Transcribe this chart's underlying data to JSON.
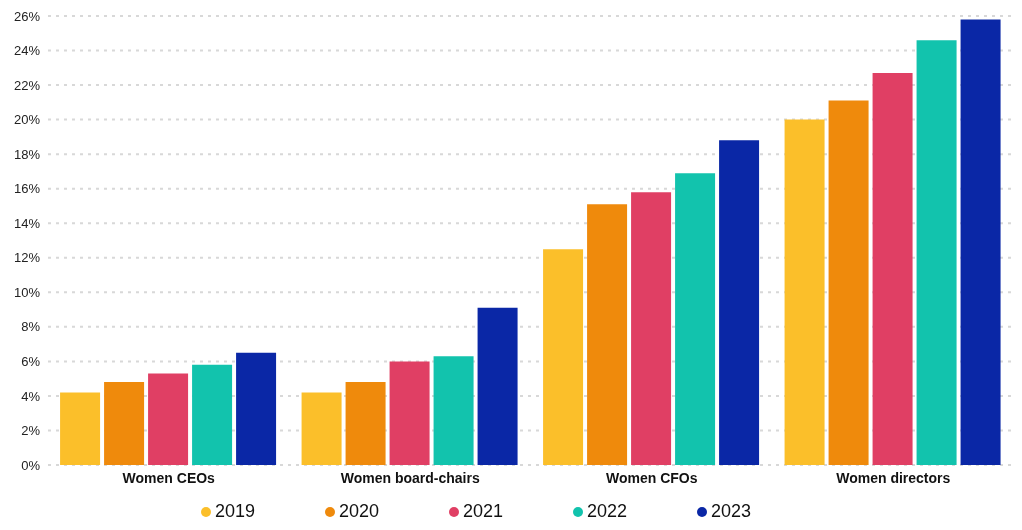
{
  "chart_data": {
    "type": "bar",
    "categories": [
      "Women CEOs",
      "Women board-chairs",
      "Women CFOs",
      "Women directors"
    ],
    "series": [
      {
        "name": "2019",
        "color": "#fbbf2a",
        "values": [
          4.2,
          4.2,
          12.5,
          20.0
        ]
      },
      {
        "name": "2020",
        "color": "#ef8a0c",
        "values": [
          4.8,
          4.8,
          15.1,
          21.1
        ]
      },
      {
        "name": "2021",
        "color": "#e03f64",
        "values": [
          5.3,
          6.0,
          15.8,
          22.7
        ]
      },
      {
        "name": "2022",
        "color": "#12c3ad",
        "values": [
          5.8,
          6.3,
          16.9,
          24.6
        ]
      },
      {
        "name": "2023",
        "color": "#0a27a6",
        "values": [
          6.5,
          9.1,
          18.8,
          25.8
        ]
      }
    ],
    "ylim": [
      0,
      26
    ],
    "yticks": [
      {
        "value": 0,
        "label": "0%"
      },
      {
        "value": 2,
        "label": "2%"
      },
      {
        "value": 4,
        "label": "4%"
      },
      {
        "value": 6,
        "label": "6%"
      },
      {
        "value": 8,
        "label": "8%"
      },
      {
        "value": 10,
        "label": "10%"
      },
      {
        "value": 12,
        "label": "12%"
      },
      {
        "value": 14,
        "label": "14%"
      },
      {
        "value": 16,
        "label": "16%"
      },
      {
        "value": 18,
        "label": "18%"
      },
      {
        "value": 20,
        "label": "20%"
      },
      {
        "value": 22,
        "label": "22%"
      },
      {
        "value": 24,
        "label": "24%"
      },
      {
        "value": 26,
        "label": "26%"
      }
    ],
    "grid": "y",
    "legend": "bottom"
  }
}
